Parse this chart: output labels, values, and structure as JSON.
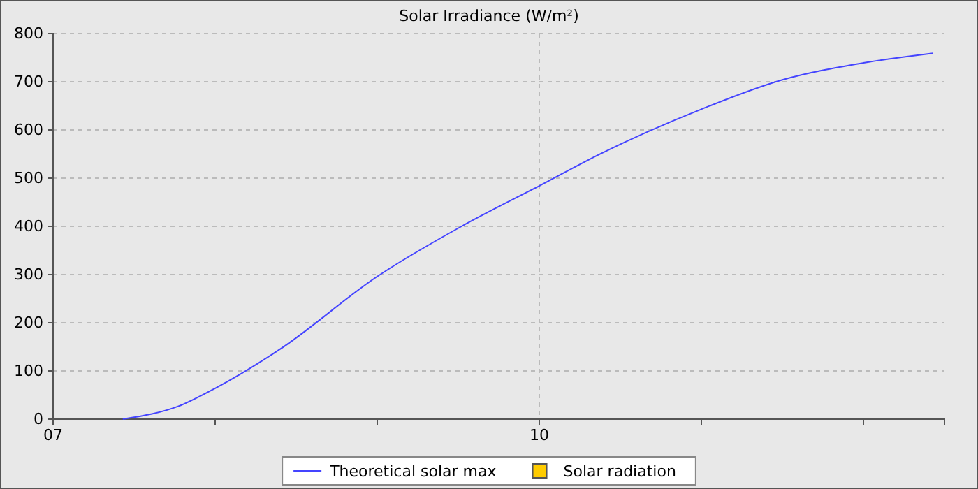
{
  "chart_data": {
    "type": "line",
    "title": "Solar Irradiance (W/m²)",
    "x": [
      7.43,
      7.79,
      8,
      8.4,
      9,
      9.52,
      10,
      10.38,
      11,
      11.5,
      12,
      12.43
    ],
    "series": [
      {
        "name": "Theoretical solar max",
        "color": "#4444ff",
        "values": [
          0,
          29,
          64,
          145,
          296,
          400,
          484,
          551,
          643,
          704,
          739,
          759
        ]
      },
      {
        "name": "Solar radiation",
        "type": "area",
        "color": "#ffcc00",
        "values": [
          null,
          null,
          null,
          null,
          null,
          null,
          null,
          null,
          null,
          null,
          null,
          null
        ]
      }
    ],
    "xlim": [
      7,
      12.5
    ],
    "xticks": [
      {
        "value": 7,
        "label": "07"
      },
      {
        "value": 8,
        "label": null
      },
      {
        "value": 9,
        "label": null
      },
      {
        "value": 10,
        "label": "10"
      },
      {
        "value": 11,
        "label": null
      },
      {
        "value": 12,
        "label": null
      }
    ],
    "ylim": [
      0,
      800
    ],
    "yticks": [
      0,
      100,
      200,
      300,
      400,
      500,
      600,
      700,
      800
    ],
    "grid": true,
    "legend": "bottom",
    "line_style": "solid",
    "marker": "none"
  }
}
